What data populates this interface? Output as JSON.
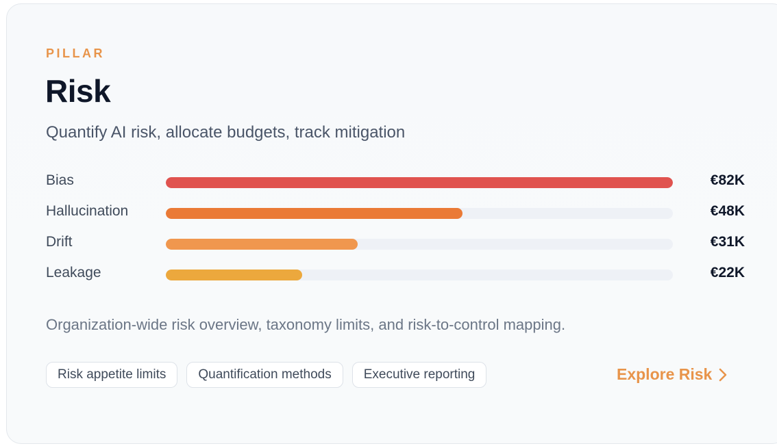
{
  "card": {
    "eyebrow": "PILLAR",
    "title": "Risk",
    "subtitle": "Quantify AI risk, allocate budgets, track mitigation",
    "description": "Organization-wide risk overview, taxonomy limits, and risk-to-control mapping."
  },
  "chart_data": {
    "type": "bar",
    "categories": [
      "Bias",
      "Hallucination",
      "Drift",
      "Leakage"
    ],
    "values": [
      82,
      48,
      31,
      22
    ],
    "value_labels": [
      "€82K",
      "€48K",
      "€31K",
      "€22K"
    ],
    "unit": "€K",
    "max": 82,
    "colors": [
      "#e0534f",
      "#ea7a36",
      "#f0974e",
      "#eca83d"
    ],
    "track_color": "#eef1f6"
  },
  "chips": [
    {
      "label": "Risk appetite limits"
    },
    {
      "label": "Quantification methods"
    },
    {
      "label": "Executive reporting"
    }
  ],
  "cta": {
    "label": "Explore Risk",
    "icon": "chevron-right-icon",
    "color": "#e8944a"
  }
}
